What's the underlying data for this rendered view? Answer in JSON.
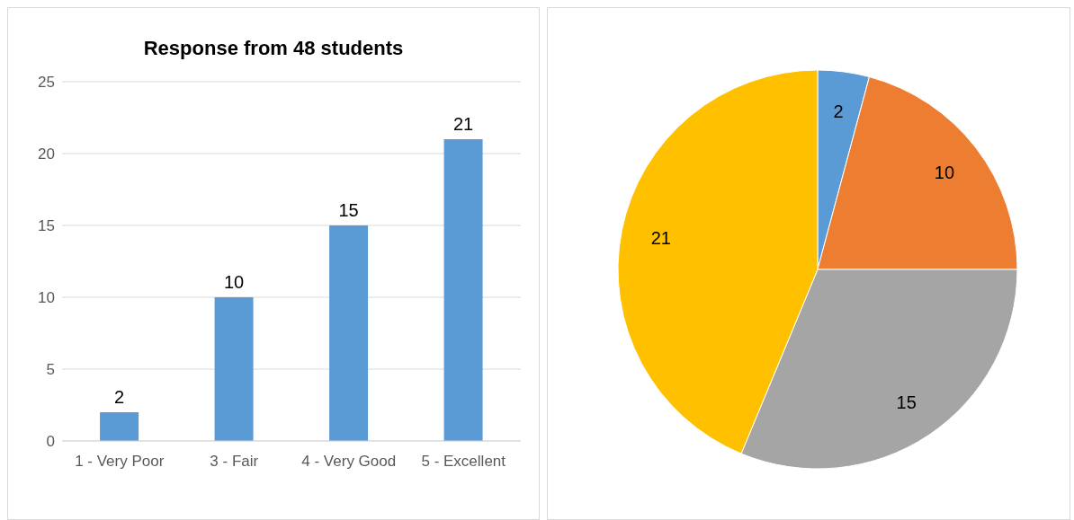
{
  "chart_data": [
    {
      "type": "bar",
      "title": "Response from 48 students",
      "categories": [
        "1 - Very Poor",
        "3 - Fair",
        "4 - Very Good",
        "5 - Excellent"
      ],
      "values": [
        2,
        10,
        15,
        21
      ],
      "color": "#5b9bd5",
      "ylim": [
        0,
        25
      ],
      "yticks": [
        0,
        5,
        10,
        15,
        20,
        25
      ],
      "grid": "y",
      "data_labels": true,
      "legend": false
    },
    {
      "type": "pie",
      "categories": [
        null,
        null,
        null,
        null
      ],
      "values": [
        2,
        10,
        15,
        21
      ],
      "colors": [
        "#5b9bd5",
        "#ed7d31",
        "#a5a5a5",
        "#ffc000"
      ],
      "data_labels": true,
      "legend": false
    }
  ]
}
